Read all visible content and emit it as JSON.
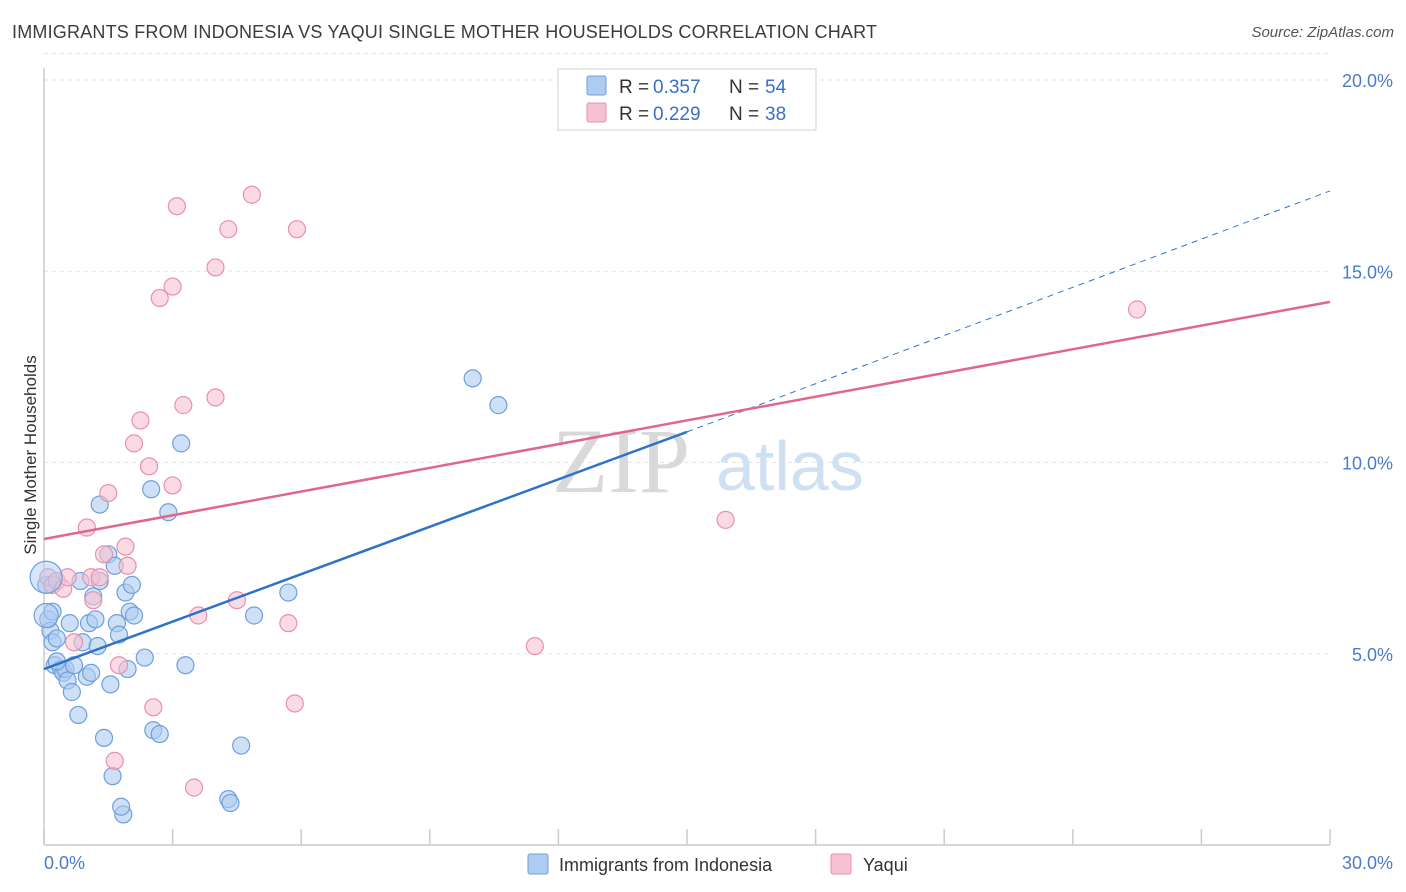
{
  "title": "IMMIGRANTS FROM INDONESIA VS YAQUI SINGLE MOTHER HOUSEHOLDS CORRELATION CHART",
  "source": "Source: ZipAtlas.com",
  "watermark": {
    "zip": "ZIP",
    "atlas": "atlas"
  },
  "colors": {
    "blue_fill": "#aecbf0",
    "blue_stroke": "#6f9fdc",
    "blue_line": "#2f72c8",
    "pink_fill": "#f6c2d1",
    "pink_stroke": "#e990ad",
    "pink_line": "#e0668c",
    "grid": "#e3e3e3",
    "tick_text": "#4a7cc9"
  },
  "legend": {
    "rows": [
      {
        "r_label": "R =",
        "r_value": "0.357",
        "n_label": "N =",
        "n_value": "54",
        "color": "blue"
      },
      {
        "r_label": "R =",
        "r_value": "0.229",
        "n_label": "N =",
        "n_value": "38",
        "color": "pink"
      }
    ]
  },
  "chart_data": {
    "type": "scatter",
    "title": "IMMIGRANTS FROM INDONESIA VS YAQUI SINGLE MOTHER HOUSEHOLDS CORRELATION CHART",
    "xlabel": "",
    "ylabel": "Single Mother Households",
    "xlim": [
      0,
      30
    ],
    "ylim": [
      0,
      20
    ],
    "x_ticks": [
      "0.0%",
      "30.0%"
    ],
    "y_ticks": [
      "5.0%",
      "10.0%",
      "15.0%",
      "20.0%"
    ],
    "y_tick_values": [
      5,
      10,
      15,
      20
    ],
    "grid": true,
    "legend_position": "bottom",
    "series": [
      {
        "name": "Immigrants from Indonesia",
        "color": "blue",
        "points": [
          [
            0.05,
            6.8
          ],
          [
            0.1,
            5.9
          ],
          [
            0.15,
            5.6
          ],
          [
            0.2,
            5.3
          ],
          [
            0.25,
            4.7
          ],
          [
            0.3,
            5.4
          ],
          [
            0.4,
            4.6
          ],
          [
            0.45,
            4.5
          ],
          [
            0.5,
            4.6
          ],
          [
            0.55,
            4.3
          ],
          [
            0.6,
            5.8
          ],
          [
            0.65,
            4.0
          ],
          [
            0.7,
            4.7
          ],
          [
            0.8,
            3.4
          ],
          [
            0.85,
            6.9
          ],
          [
            0.9,
            5.3
          ],
          [
            1.0,
            4.4
          ],
          [
            1.05,
            5.8
          ],
          [
            1.1,
            4.5
          ],
          [
            1.15,
            6.5
          ],
          [
            1.2,
            5.9
          ],
          [
            1.25,
            5.2
          ],
          [
            1.3,
            6.9
          ],
          [
            1.3,
            8.9
          ],
          [
            1.4,
            2.8
          ],
          [
            1.5,
            7.6
          ],
          [
            1.55,
            4.2
          ],
          [
            1.6,
            1.8
          ],
          [
            1.65,
            7.3
          ],
          [
            1.7,
            5.8
          ],
          [
            1.75,
            5.5
          ],
          [
            1.9,
            6.6
          ],
          [
            1.95,
            4.6
          ],
          [
            2.0,
            6.1
          ],
          [
            2.05,
            6.8
          ],
          [
            2.1,
            6.0
          ],
          [
            2.35,
            4.9
          ],
          [
            2.5,
            9.3
          ],
          [
            2.55,
            3.0
          ],
          [
            2.7,
            2.9
          ],
          [
            2.9,
            8.7
          ],
          [
            3.2,
            10.5
          ],
          [
            3.3,
            4.7
          ],
          [
            4.3,
            1.2
          ],
          [
            4.35,
            1.1
          ],
          [
            4.6,
            2.6
          ],
          [
            4.9,
            6.0
          ],
          [
            5.7,
            6.6
          ],
          [
            10.0,
            12.2
          ],
          [
            10.6,
            11.5
          ],
          [
            1.85,
            0.8
          ],
          [
            1.8,
            1.0
          ],
          [
            0.3,
            4.8
          ],
          [
            0.2,
            6.1
          ]
        ]
      },
      {
        "name": "Yaqui",
        "color": "pink",
        "points": [
          [
            0.1,
            7.0
          ],
          [
            0.2,
            6.8
          ],
          [
            0.3,
            6.9
          ],
          [
            0.45,
            6.7
          ],
          [
            0.55,
            7.0
          ],
          [
            0.7,
            5.3
          ],
          [
            1.0,
            8.3
          ],
          [
            1.1,
            7.0
          ],
          [
            1.15,
            6.4
          ],
          [
            1.3,
            7.0
          ],
          [
            1.4,
            7.6
          ],
          [
            1.5,
            9.2
          ],
          [
            1.65,
            2.2
          ],
          [
            1.75,
            4.7
          ],
          [
            1.9,
            7.8
          ],
          [
            1.95,
            7.3
          ],
          [
            2.1,
            10.5
          ],
          [
            2.25,
            11.1
          ],
          [
            2.45,
            9.9
          ],
          [
            2.55,
            3.6
          ],
          [
            2.7,
            14.3
          ],
          [
            3.0,
            14.6
          ],
          [
            3.0,
            9.4
          ],
          [
            3.1,
            16.7
          ],
          [
            3.25,
            11.5
          ],
          [
            3.5,
            1.5
          ],
          [
            3.6,
            6.0
          ],
          [
            4.0,
            15.1
          ],
          [
            4.0,
            11.7
          ],
          [
            4.3,
            16.1
          ],
          [
            4.5,
            6.4
          ],
          [
            4.85,
            17.0
          ],
          [
            5.7,
            5.8
          ],
          [
            5.85,
            3.7
          ],
          [
            5.9,
            16.1
          ],
          [
            11.45,
            5.2
          ],
          [
            15.9,
            8.5
          ],
          [
            25.5,
            14.0
          ]
        ]
      }
    ],
    "trend_lines": [
      {
        "series": "Immigrants from Indonesia",
        "x": [
          0,
          15
        ],
        "y": [
          4.6,
          10.8
        ],
        "extended_to": [
          30,
          17.1
        ],
        "style": "solid then dashed"
      },
      {
        "series": "Yaqui",
        "x": [
          0,
          30
        ],
        "y": [
          8.0,
          14.2
        ],
        "style": "solid"
      }
    ]
  },
  "bottom_legend": {
    "items": [
      {
        "label": "Immigrants from Indonesia",
        "color": "blue"
      },
      {
        "label": "Yaqui",
        "color": "pink"
      }
    ]
  }
}
